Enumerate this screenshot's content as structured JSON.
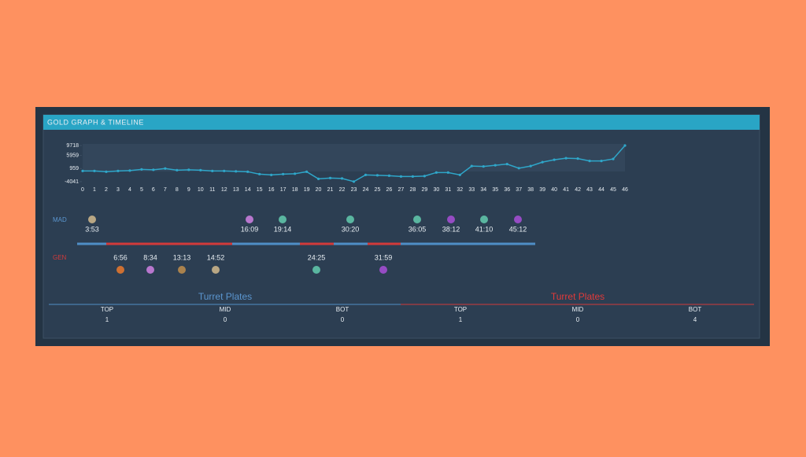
{
  "header": {
    "title": "GOLD GRAPH & TIMELINE"
  },
  "chart_data": {
    "type": "line",
    "x": [
      0,
      1,
      2,
      3,
      4,
      5,
      6,
      7,
      8,
      9,
      10,
      11,
      12,
      13,
      14,
      15,
      16,
      17,
      18,
      19,
      20,
      21,
      22,
      23,
      24,
      25,
      26,
      27,
      28,
      29,
      30,
      31,
      32,
      33,
      34,
      35,
      36,
      37,
      38,
      39,
      40,
      41,
      42,
      43,
      44,
      45,
      46
    ],
    "values": [
      50,
      50,
      -250,
      50,
      200,
      650,
      500,
      959,
      350,
      500,
      350,
      50,
      50,
      -100,
      -250,
      -1150,
      -1450,
      -1150,
      -1000,
      -250,
      -2950,
      -2650,
      -2800,
      -4000,
      -1450,
      -1600,
      -1750,
      -2050,
      -2050,
      -1900,
      -550,
      -550,
      -1450,
      1900,
      1750,
      2200,
      2650,
      1100,
      1900,
      3400,
      4300,
      4900,
      4750,
      3850,
      3850,
      4600,
      9718
    ],
    "color": "#2fa6c9",
    "xlim": [
      0,
      46
    ],
    "ylim": [
      -4041,
      9718
    ],
    "yticks": [
      -4041,
      959,
      5959,
      9718
    ]
  },
  "timeline": {
    "teams": [
      {
        "name": "MAD",
        "events": [
          "3:53",
          "16:09",
          "19:14",
          "30:20",
          "36:05",
          "38:12",
          "41:10",
          "45:12"
        ]
      },
      {
        "name": "GEN",
        "events": [
          "6:56",
          "8:34",
          "13:13",
          "14:52",
          "24:25",
          "31:59"
        ]
      }
    ]
  },
  "turret_plates": [
    {
      "title": "Turret Plates",
      "columns": [
        "TOP",
        "MID",
        "BOT"
      ],
      "values": [
        1,
        0,
        0
      ]
    },
    {
      "title": "Turret Plates",
      "columns": [
        "TOP",
        "MID",
        "BOT"
      ],
      "values": [
        1,
        0,
        4
      ]
    }
  ]
}
